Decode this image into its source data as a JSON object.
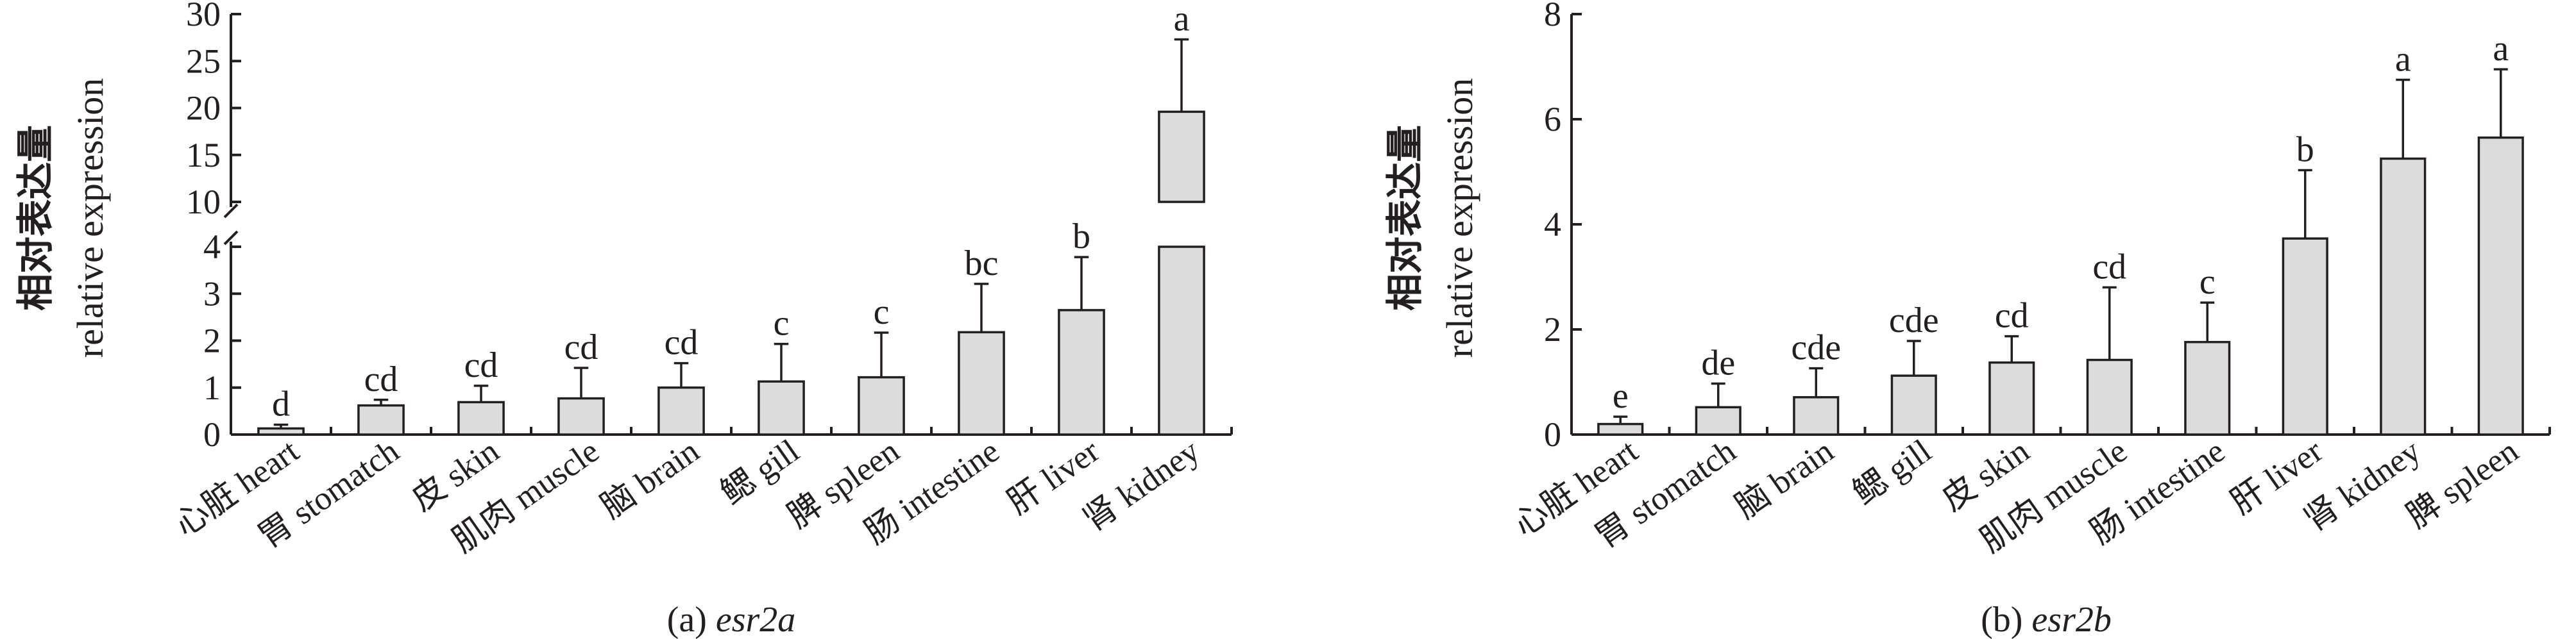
{
  "chart_data": [
    {
      "type": "bar",
      "panel": "a",
      "caption_prefix": "(a) ",
      "caption_gene": "esr2a",
      "ylabel_cn": "相对表达量",
      "ylabel_en": "relative expression",
      "axis_break": true,
      "ylim_lower": [
        0,
        4
      ],
      "ylim_upper": [
        10,
        30
      ],
      "yticks_lower": [
        "0",
        "1",
        "2",
        "3",
        "4"
      ],
      "yticks_upper": [
        "10",
        "15",
        "20",
        "25",
        "30"
      ],
      "categories": [
        "心脏 heart",
        "胃 stomatch",
        "皮 skin",
        "肌肉 muscle",
        "脑 brain",
        "鳃 gill",
        "脾 spleen",
        "肠 intestine",
        "肝 liver",
        "肾 kidney"
      ],
      "values": [
        0.13,
        0.62,
        0.69,
        0.77,
        1.0,
        1.13,
        1.22,
        2.18,
        2.65,
        19.6
      ],
      "errors": [
        0.08,
        0.12,
        0.35,
        0.65,
        0.52,
        0.8,
        0.95,
        1.03,
        1.13,
        7.7
      ],
      "significance": [
        "d",
        "cd",
        "cd",
        "cd",
        "cd",
        "c",
        "c",
        "bc",
        "b",
        "a"
      ]
    },
    {
      "type": "bar",
      "panel": "b",
      "caption_prefix": "(b) ",
      "caption_gene": "esr2b",
      "ylabel_cn": "相对表达量",
      "ylabel_en": "relative expression",
      "axis_break": false,
      "ylim": [
        0,
        8
      ],
      "yticks": [
        "0",
        "2",
        "4",
        "6",
        "8"
      ],
      "categories": [
        "心脏 heart",
        "胃 stomatch",
        "脑 brain",
        "鳃 gill",
        "皮 skin",
        "肌肉 muscle",
        "肠 intestine",
        "肝 liver",
        "肾 kidney",
        "脾 spleen"
      ],
      "values": [
        0.2,
        0.52,
        0.71,
        1.12,
        1.37,
        1.42,
        1.76,
        3.73,
        5.25,
        5.65
      ],
      "errors": [
        0.14,
        0.45,
        0.55,
        0.66,
        0.5,
        1.38,
        0.75,
        1.3,
        1.5,
        1.3
      ],
      "significance": [
        "e",
        "de",
        "cde",
        "cde",
        "cd",
        "cd",
        "c",
        "b",
        "a",
        "a"
      ]
    }
  ]
}
